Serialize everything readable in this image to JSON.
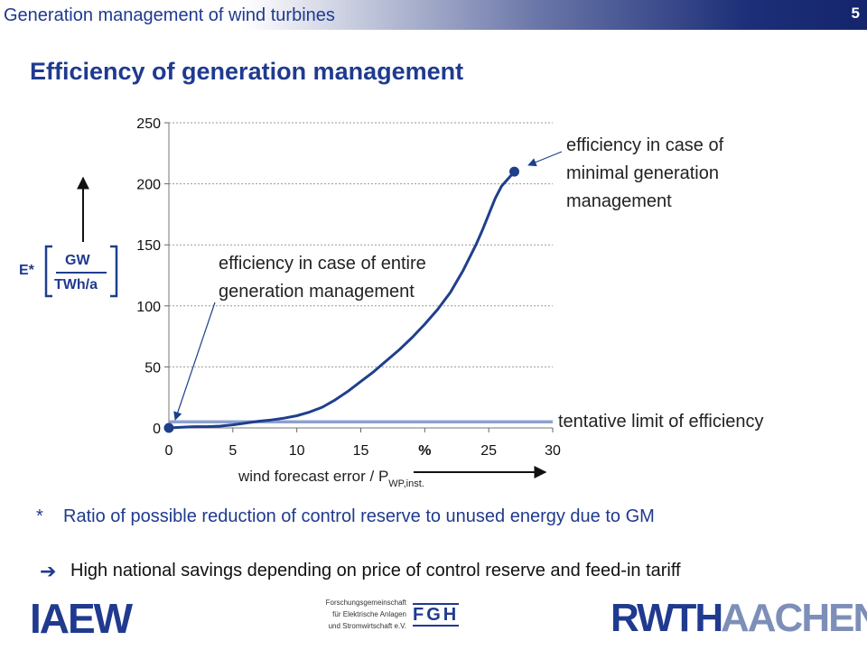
{
  "header": {
    "title": "Generation management of wind turbines",
    "page_number": "5"
  },
  "slide": {
    "title": "Efficiency of generation management"
  },
  "chart_data": {
    "type": "line",
    "xlim": [
      0,
      30
    ],
    "ylim": [
      0,
      250
    ],
    "x_ticks": [
      "0",
      "5",
      "10",
      "15",
      "%",
      "25",
      "30"
    ],
    "y_ticks": [
      "0",
      "50",
      "100",
      "150",
      "200",
      "250"
    ],
    "grid": "horizontal dotted",
    "series": [
      {
        "color": "#1f3f8c",
        "x": [
          0,
          1,
          2,
          3,
          4,
          5,
          6,
          7,
          8,
          9,
          10,
          11,
          12,
          13,
          14,
          15,
          16,
          17,
          18,
          19,
          20,
          21,
          22,
          23,
          24,
          24.5,
          25,
          25.5,
          26,
          26.5,
          27
        ],
        "y": [
          0,
          0.5,
          1,
          1,
          1.5,
          2.5,
          4,
          5.5,
          6.5,
          8,
          10,
          13,
          17,
          23,
          30,
          38,
          46,
          55,
          64,
          74,
          85,
          97,
          111,
          129,
          150,
          162,
          175,
          188,
          198,
          204,
          210
        ]
      }
    ],
    "highlight_points": [
      {
        "x": 0,
        "y": 0
      },
      {
        "x": 27,
        "y": 210
      }
    ],
    "reference_line": {
      "y": 5,
      "color": "#8ea1cf",
      "label": "tentative limit of efficiency"
    },
    "annotations": {
      "minimal": "efficiency in case of minimal generation management",
      "entire": "efficiency in case of entire generation management"
    },
    "x_caption": "wind forecast error / P",
    "x_caption_sub": "WP,inst.",
    "y_unit": {
      "symbol": "E*",
      "numerator": "GW",
      "denominator": "TWh/a"
    }
  },
  "footnote": {
    "marker": "*",
    "text": "Ratio of possible reduction of control reserve to unused energy due to GM"
  },
  "conclusion": {
    "arrow": "➔",
    "text": "High national savings depending on price of control reserve and feed-in tariff"
  },
  "footer": {
    "iaew_logo": "IAEW",
    "fgh_lines": [
      "Forschungsgemeinschaft",
      "für Elektrische Anlagen",
      "und Stromwirtschaft e.V."
    ],
    "fgh_logo": "FGH",
    "rwth_logo": "RWTH",
    "aachen_logo": "AACHEN"
  }
}
